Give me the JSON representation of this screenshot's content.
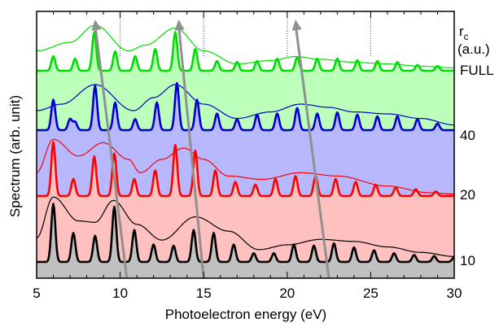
{
  "chart_data": {
    "type": "line",
    "title": "",
    "xlabel": "Photoelectron energy (eV)",
    "ylabel": "Spectrum (arb. unit)",
    "xlim": [
      5,
      30
    ],
    "x_ticks": [
      "5",
      "10",
      "15",
      "20",
      "25",
      "30"
    ],
    "top_axis_dotted_gridlines_at": [
      10,
      15,
      20,
      25
    ],
    "legend_title_line1": "r",
    "legend_title_subscript": "c",
    "legend_title_line2": "(a.u.)",
    "series": [
      {
        "name": "10",
        "color": "#000000",
        "fill": "#c0c0c0",
        "peaks": [
          [
            6.0,
            1.0
          ],
          [
            7.2,
            0.5
          ],
          [
            8.5,
            0.45
          ],
          [
            9.65,
            0.95
          ],
          [
            10.85,
            0.55
          ],
          [
            12.0,
            0.3
          ],
          [
            13.2,
            0.28
          ],
          [
            14.4,
            0.55
          ],
          [
            15.6,
            0.5
          ],
          [
            16.8,
            0.3
          ],
          [
            18.0,
            0.15
          ],
          [
            19.2,
            0.15
          ],
          [
            20.4,
            0.3
          ],
          [
            21.6,
            0.28
          ],
          [
            22.8,
            0.32
          ],
          [
            24.0,
            0.25
          ],
          [
            25.2,
            0.2
          ],
          [
            26.4,
            0.15
          ],
          [
            27.6,
            0.12
          ],
          [
            28.8,
            0.1
          ],
          [
            30.0,
            0.08
          ]
        ],
        "envelope": [
          [
            5,
            0.35
          ],
          [
            6,
            0.95
          ],
          [
            7.5,
            0.6
          ],
          [
            8.5,
            0.58
          ],
          [
            9.6,
            0.9
          ],
          [
            11,
            0.55
          ],
          [
            12.5,
            0.32
          ],
          [
            14.5,
            0.66
          ],
          [
            16.5,
            0.45
          ],
          [
            18.3,
            0.18
          ],
          [
            20,
            0.25
          ],
          [
            22,
            0.33
          ],
          [
            24,
            0.3
          ],
          [
            26,
            0.22
          ],
          [
            28,
            0.14
          ],
          [
            30,
            0.08
          ]
        ]
      },
      {
        "name": "20",
        "color": "#ff0000",
        "fill": "#ffc0c0",
        "peaks": [
          [
            6.0,
            0.95
          ],
          [
            7.2,
            0.3
          ],
          [
            8.45,
            0.7
          ],
          [
            9.65,
            0.75
          ],
          [
            10.85,
            0.3
          ],
          [
            12.1,
            0.45
          ],
          [
            13.3,
            0.9
          ],
          [
            14.5,
            0.8
          ],
          [
            15.7,
            0.45
          ],
          [
            16.9,
            0.25
          ],
          [
            18.1,
            0.2
          ],
          [
            19.3,
            0.3
          ],
          [
            20.5,
            0.35
          ],
          [
            21.7,
            0.35
          ],
          [
            22.9,
            0.3
          ],
          [
            24.1,
            0.25
          ],
          [
            25.3,
            0.2
          ],
          [
            26.5,
            0.15
          ],
          [
            27.7,
            0.12
          ],
          [
            28.9,
            0.08
          ]
        ],
        "envelope": [
          [
            5,
            0.35
          ],
          [
            6,
            0.85
          ],
          [
            7.5,
            0.6
          ],
          [
            9,
            0.8
          ],
          [
            10.5,
            0.55
          ],
          [
            11.2,
            0.35
          ],
          [
            12.5,
            0.55
          ],
          [
            13.8,
            0.72
          ],
          [
            15,
            0.55
          ],
          [
            16.5,
            0.3
          ],
          [
            18.5,
            0.25
          ],
          [
            20.8,
            0.35
          ],
          [
            23,
            0.3
          ],
          [
            26,
            0.15
          ],
          [
            28.5,
            0.05
          ],
          [
            30,
            0.03
          ]
        ]
      },
      {
        "name": "40",
        "color": "#0000cc",
        "fill": "#b8b8ff",
        "peaks": [
          [
            6.0,
            0.55
          ],
          [
            7.0,
            0.2
          ],
          [
            7.3,
            0.15
          ],
          [
            8.5,
            0.8
          ],
          [
            9.7,
            0.5
          ],
          [
            10.9,
            0.2
          ],
          [
            12.2,
            0.5
          ],
          [
            13.4,
            0.85
          ],
          [
            14.6,
            0.55
          ],
          [
            15.8,
            0.3
          ],
          [
            17.0,
            0.2
          ],
          [
            18.2,
            0.28
          ],
          [
            19.4,
            0.3
          ],
          [
            20.6,
            0.4
          ],
          [
            21.8,
            0.3
          ],
          [
            23.0,
            0.32
          ],
          [
            24.2,
            0.28
          ],
          [
            25.4,
            0.25
          ],
          [
            26.6,
            0.25
          ],
          [
            27.8,
            0.2
          ],
          [
            29.0,
            0.12
          ]
        ],
        "envelope": [
          [
            5,
            0.3
          ],
          [
            6.5,
            0.4
          ],
          [
            8.5,
            0.7
          ],
          [
            10.8,
            0.3
          ],
          [
            12,
            0.5
          ],
          [
            13.3,
            0.7
          ],
          [
            15,
            0.4
          ],
          [
            17,
            0.18
          ],
          [
            19,
            0.28
          ],
          [
            20.8,
            0.4
          ],
          [
            22.5,
            0.35
          ],
          [
            24,
            0.28
          ],
          [
            26,
            0.25
          ],
          [
            28,
            0.18
          ],
          [
            30,
            0.08
          ]
        ]
      },
      {
        "name": "FULL",
        "color": "#00dd00",
        "fill": "#bbffbb",
        "peaks": [
          [
            6.0,
            0.3
          ],
          [
            7.3,
            0.25
          ],
          [
            8.45,
            0.8
          ],
          [
            9.7,
            0.4
          ],
          [
            10.9,
            0.3
          ],
          [
            12.1,
            0.45
          ],
          [
            13.3,
            0.8
          ],
          [
            14.5,
            0.45
          ],
          [
            15.8,
            0.2
          ],
          [
            17.0,
            0.18
          ],
          [
            18.2,
            0.2
          ],
          [
            19.4,
            0.25
          ],
          [
            20.6,
            0.28
          ],
          [
            21.8,
            0.25
          ],
          [
            23.0,
            0.25
          ],
          [
            24.2,
            0.22
          ],
          [
            25.4,
            0.2
          ],
          [
            26.6,
            0.18
          ],
          [
            27.8,
            0.12
          ],
          [
            29.0,
            0.1
          ]
        ],
        "envelope": [
          [
            5,
            0.35
          ],
          [
            7,
            0.5
          ],
          [
            8.5,
            0.8
          ],
          [
            10.5,
            0.35
          ],
          [
            11.5,
            0.45
          ],
          [
            13.3,
            0.75
          ],
          [
            15,
            0.35
          ],
          [
            17,
            0.12
          ],
          [
            19,
            0.18
          ],
          [
            20.5,
            0.25
          ],
          [
            22,
            0.2
          ],
          [
            24,
            0.15
          ],
          [
            26,
            0.12
          ],
          [
            28,
            0.08
          ],
          [
            30,
            0.05
          ]
        ]
      }
    ],
    "arrows": [
      {
        "from": [
          10.4,
          0.0
        ],
        "to": [
          8.5,
          1.0
        ]
      },
      {
        "from": [
          15.0,
          0.0
        ],
        "to": [
          13.5,
          1.0
        ]
      },
      {
        "from": [
          22.5,
          0.0
        ],
        "to": [
          20.5,
          1.0
        ]
      }
    ],
    "arrow_color": "#909090"
  }
}
